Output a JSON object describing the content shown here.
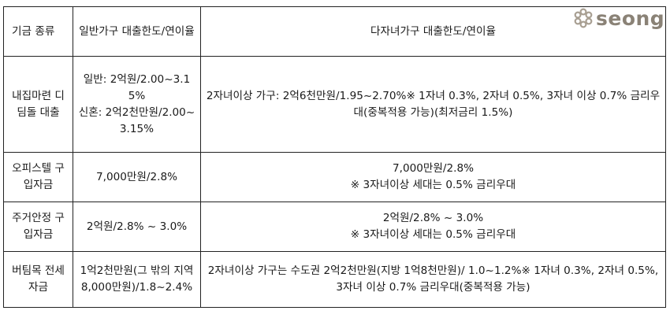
{
  "logo": {
    "text": "seong"
  },
  "table": {
    "headers": {
      "fund_type": "기금 종류",
      "general": "일반가구 대출한도/연이율",
      "multichild": "다자녀가구 대출한도/연이율"
    },
    "rows": [
      {
        "fund": "내집마련 디딤돌 대출",
        "general_line1": "일반: 2억원/2.00~3.15%",
        "general_line2": "신혼: 2억2천만원/2.00~3.15%",
        "multichild_line1": "2자녀이상 가구: 2억6천만원/1.95~2.70%※ 1자녀 0.3%, 2자녀 0.5%, 3자녀 이상 0.7% 금리우대(중복적용 가능)(최저금리 1.5%)",
        "multichild_line2": ""
      },
      {
        "fund": "오피스텔 구입자금",
        "general_line1": "7,000만원/2.8%",
        "general_line2": "",
        "multichild_line1": "7,000만원/2.8%",
        "multichild_line2": "※ 3자녀이상 세대는 0.5% 금리우대"
      },
      {
        "fund": "주거안정 구입자금",
        "general_line1": "2억원/2.8% ~ 3.0%",
        "general_line2": "",
        "multichild_line1": "2억원/2.8% ~ 3.0%",
        "multichild_line2": "※ 3자녀이상 세대는 0.5% 금리우대"
      },
      {
        "fund": "버팀목 전세자금",
        "general_line1": "1억2천만원(그 밖의 지역 8,000만원)/1.8~2.4%",
        "general_line2": "",
        "multichild_line1": "2자녀이상 가구는 수도권 2억2천만원(지방 1억8천만원)/ 1.0~1.2%※ 1자녀 0.3%, 2자녀 0.5%, 3자녀 이상 0.7% 금리우대(중복적용 가능)",
        "multichild_line2": ""
      }
    ]
  }
}
